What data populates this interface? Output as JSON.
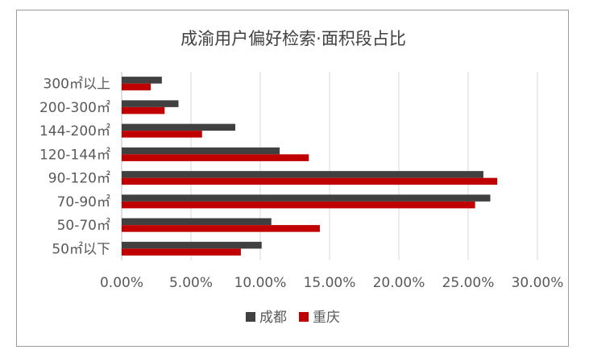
{
  "chart_data": {
    "type": "bar",
    "orientation": "horizontal",
    "title": "成渝用户偏好检索·面积段占比",
    "categories": [
      "300㎡以上",
      "200-300㎡",
      "144-200㎡",
      "120-144㎡",
      "90-120㎡",
      "70-90㎡",
      "50-70㎡",
      "50㎡以下"
    ],
    "series": [
      {
        "name": "成都",
        "color": "#404040",
        "values": [
          2.9,
          4.1,
          8.2,
          11.4,
          26.1,
          26.6,
          10.8,
          10.1
        ]
      },
      {
        "name": "重庆",
        "color": "#c00000",
        "values": [
          2.1,
          3.1,
          5.8,
          13.5,
          27.1,
          25.5,
          14.3,
          8.6
        ]
      }
    ],
    "xlim": [
      0,
      30
    ],
    "xticks": [
      "0.00%",
      "5.00%",
      "10.00%",
      "15.00%",
      "20.00%",
      "25.00%",
      "30.00%"
    ],
    "xgrid": true,
    "legend_position": "bottom"
  }
}
